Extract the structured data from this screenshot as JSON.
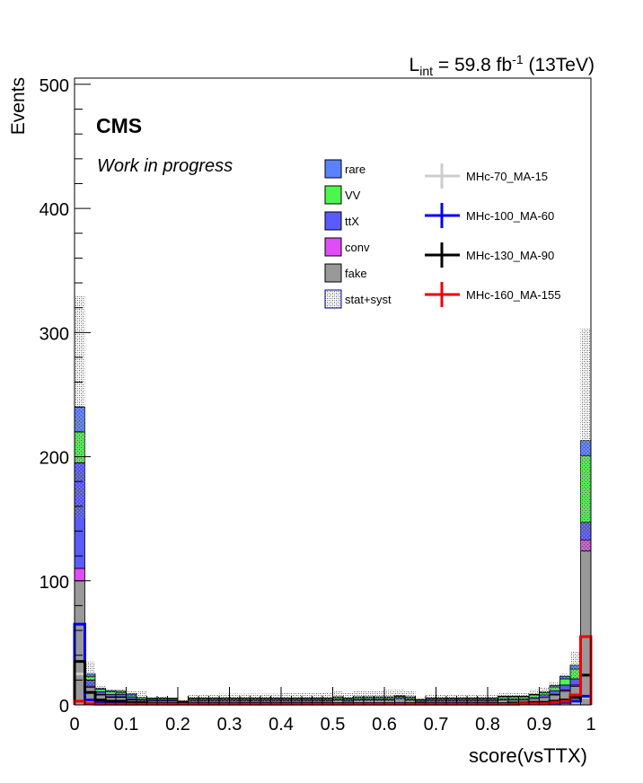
{
  "chart_data": {
    "type": "bar",
    "stacked": true,
    "experiment": "CMS",
    "status": "Work in progress",
    "lumi": {
      "prefix": "L",
      "sub": "int",
      "mid": " = 59.8 fb",
      "sup": "-1",
      "suffix": " (13TeV)"
    },
    "xlabel": "score(vsTTX)",
    "ylabel": "Events",
    "xlim": [
      0,
      1
    ],
    "ylim": [
      0,
      505
    ],
    "xticks": [
      0,
      0.1,
      0.2,
      0.3,
      0.4,
      0.5,
      0.6,
      0.7,
      0.8,
      0.9,
      1
    ],
    "xtick_labels": [
      "0",
      "0.1",
      "0.2",
      "0.3",
      "0.4",
      "0.5",
      "0.6",
      "0.7",
      "0.8",
      "0.9",
      "1"
    ],
    "yticks": [
      0,
      100,
      200,
      300,
      400,
      500
    ],
    "ytick_labels": [
      "0",
      "100",
      "200",
      "300",
      "400",
      "500"
    ],
    "n_bins": 50,
    "stack_order_bottom_to_top": [
      "fake",
      "conv",
      "ttX",
      "VV",
      "rare"
    ],
    "background": [
      {
        "name": "rare",
        "color": "#5a82ff",
        "values": [
          20,
          2,
          1,
          1,
          1,
          1,
          0,
          0.5,
          0.5,
          0.5,
          0.3,
          0.5,
          0.5,
          0.5,
          0.5,
          0.5,
          0.5,
          0.5,
          0.5,
          0.5,
          0.5,
          0.5,
          0.5,
          0.5,
          0.5,
          0.5,
          0.5,
          0.5,
          0.5,
          0.5,
          0.5,
          0.5,
          0.5,
          0.5,
          0.5,
          0.5,
          0.5,
          0.5,
          0.5,
          0.5,
          0.5,
          0.5,
          0.5,
          0.5,
          0.5,
          0.5,
          1,
          2,
          3,
          12
        ]
      },
      {
        "name": "VV",
        "color": "#4cf74c",
        "values": [
          25,
          3,
          2,
          2,
          1.5,
          1.5,
          1,
          1,
          1,
          1,
          0.5,
          1,
          1,
          1,
          1,
          1,
          1,
          1,
          1,
          1,
          1,
          1,
          1,
          1,
          1,
          1,
          1,
          1,
          1,
          1,
          1,
          1,
          1,
          1,
          1,
          1,
          1,
          1,
          1,
          1,
          1,
          1.5,
          1.5,
          1.5,
          2,
          2,
          3,
          5,
          8,
          54
        ]
      },
      {
        "name": "ttX",
        "color": "#5a5aff",
        "values": [
          85,
          5,
          2,
          2,
          2,
          2,
          1,
          1,
          1,
          1,
          0.5,
          1,
          1,
          1,
          1,
          1,
          1,
          1,
          1,
          1,
          1,
          1,
          1,
          1,
          1,
          1,
          1,
          1,
          1,
          1,
          1,
          1,
          1,
          1,
          1,
          1,
          1,
          1,
          1,
          1,
          1,
          1,
          1,
          1,
          1,
          2,
          3,
          4,
          5,
          14
        ]
      },
      {
        "name": "conv",
        "color": "#e04cf7",
        "values": [
          10,
          1,
          0.5,
          0.5,
          0.5,
          0.5,
          0,
          0,
          0,
          0,
          0,
          0,
          0,
          0,
          0,
          0,
          0,
          0,
          0,
          0,
          0,
          0,
          0,
          0,
          0,
          0,
          0,
          0,
          0,
          0,
          0,
          0,
          0,
          0,
          0,
          0,
          0,
          0,
          0,
          0,
          0,
          0,
          0,
          0,
          0,
          0,
          0.5,
          1,
          1,
          9
        ]
      },
      {
        "name": "fake",
        "color": "#999999",
        "values": [
          100,
          14,
          8,
          6,
          6,
          4,
          4,
          3,
          3,
          3,
          2,
          3,
          3,
          3,
          3,
          3,
          3,
          3,
          3,
          3,
          3,
          3,
          3,
          3,
          3,
          4,
          3,
          4,
          4,
          4,
          4,
          5,
          4,
          2,
          3,
          3,
          3,
          3,
          3,
          3,
          3,
          4,
          4,
          4,
          5,
          6,
          8,
          11,
          15,
          124
        ]
      }
    ],
    "uncertainty": {
      "name": "stat+syst",
      "values": [
        330,
        35,
        15,
        13,
        13,
        11,
        11,
        6,
        7,
        5,
        4,
        8,
        8,
        8,
        9,
        9,
        9,
        9,
        9,
        9,
        10,
        10,
        10,
        10,
        10,
        11,
        10,
        11,
        11,
        11,
        12,
        12,
        11,
        6,
        8,
        8,
        8,
        8,
        8,
        8,
        8,
        10,
        10,
        10,
        12,
        14,
        18,
        25,
        43,
        303
      ]
    },
    "signals": [
      {
        "name": "MHc-70_MA-15",
        "color": "#cccccc",
        "values": [
          25,
          4,
          2,
          2,
          2,
          1.5,
          1,
          1,
          1,
          1,
          1,
          1,
          1,
          1,
          1,
          1,
          1,
          1,
          1,
          1,
          1,
          1,
          1,
          1,
          1,
          1,
          1,
          1,
          1,
          1,
          1,
          1,
          1,
          1,
          1,
          1,
          1,
          1,
          1,
          1,
          1,
          1,
          1,
          1,
          1,
          1,
          1.5,
          2,
          2,
          6
        ]
      },
      {
        "name": "MHc-100_MA-60",
        "color": "#0000ee",
        "values": [
          65,
          4,
          2,
          2,
          1.5,
          1,
          1,
          1,
          1,
          1,
          1,
          1,
          1,
          1,
          1,
          1,
          1,
          1,
          1,
          1,
          1,
          1,
          1,
          1,
          1,
          1,
          1,
          1,
          1,
          1,
          1,
          1,
          1,
          1,
          1,
          1,
          1,
          1,
          1,
          1,
          1,
          1,
          1,
          1,
          1,
          1,
          1.5,
          2,
          3,
          7
        ]
      },
      {
        "name": "MHc-130_MA-90",
        "color": "#000000",
        "values": [
          35,
          10,
          4,
          3,
          3,
          2,
          2,
          1,
          1,
          1,
          1,
          1,
          1,
          1,
          1,
          1,
          1,
          1,
          1,
          1,
          1,
          1,
          1,
          1,
          1,
          1,
          1,
          1,
          1,
          1,
          1,
          1,
          1,
          1,
          1,
          1,
          1,
          1,
          1,
          1,
          1,
          1,
          1.5,
          1.5,
          2,
          2,
          3,
          4,
          6,
          24
        ]
      },
      {
        "name": "MHc-160_MA-155",
        "color": "#ee0000",
        "values": [
          3,
          1,
          0.5,
          0.5,
          0.5,
          0.5,
          0.5,
          0.5,
          0.5,
          0.5,
          0.5,
          0.5,
          0.5,
          0.5,
          0.5,
          0.5,
          0.5,
          0.5,
          0.5,
          0.5,
          0.5,
          0.5,
          0.5,
          0.5,
          0.5,
          0.5,
          0.5,
          0.5,
          0.5,
          0.5,
          0.5,
          0.5,
          0.5,
          0.5,
          0.5,
          0.5,
          0.5,
          0.5,
          0.5,
          0.5,
          0.5,
          0.5,
          0.5,
          1,
          1,
          1,
          2,
          3,
          8,
          55
        ]
      }
    ],
    "legend_background": [
      "rare",
      "VV",
      "ttX",
      "conv",
      "fake",
      "stat+syst"
    ],
    "legend_signals": [
      "MHc-70_MA-15",
      "MHc-100_MA-60",
      "MHc-130_MA-90",
      "MHc-160_MA-155"
    ],
    "legend_placement": "top-center",
    "grid": false
  }
}
